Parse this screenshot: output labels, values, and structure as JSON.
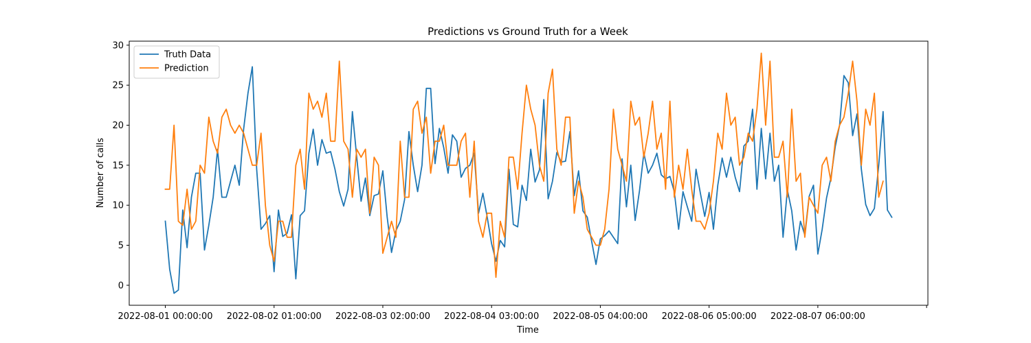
{
  "chart_data": {
    "type": "line",
    "title": "Predictions vs Ground Truth for a Week",
    "xlabel": "Time",
    "ylabel": "Number of calls",
    "x_start": "2022-08-01 00:00:00",
    "x_step_hours": 1,
    "x_tick_labels": [
      "2022-08-01 00:00:00",
      "2022-08-02 01:00:00",
      "2022-08-03 02:00:00",
      "2022-08-04 03:00:00",
      "2022-08-05 04:00:00",
      "2022-08-06 05:00:00",
      "2022-08-07 06:00:00",
      ""
    ],
    "x_tick_hours": [
      0,
      25,
      50,
      75,
      100,
      125,
      150,
      175
    ],
    "xlim_hours": [
      -8.3,
      175.3
    ],
    "yticks": [
      0,
      5,
      10,
      15,
      20,
      25,
      30
    ],
    "ylim": [
      -2.5,
      30.5
    ],
    "grid": false,
    "legend_position": "upper-left",
    "series": [
      {
        "name": "Truth Data",
        "color": "#1f77b4",
        "values": [
          8,
          2,
          -1,
          -0.6,
          9.4,
          4.7,
          11,
          14,
          14,
          4.4,
          7.5,
          11,
          17,
          11,
          11,
          13,
          15,
          12.5,
          19.5,
          24,
          27.3,
          14.5,
          7,
          7.7,
          8.7,
          1.7,
          9.4,
          6.1,
          6.5,
          8.8,
          0.8,
          8.7,
          9.3,
          16.5,
          19.5,
          15,
          18.2,
          16.5,
          16.7,
          14.5,
          11.7,
          9.9,
          12,
          21.7,
          16,
          10.5,
          13.4,
          8.7,
          11.2,
          11.4,
          14.3,
          8.5,
          4.1,
          6.8,
          8,
          10.7,
          19.2,
          15,
          11.7,
          15,
          24.6,
          24.6,
          15.2,
          19.6,
          17.2,
          14,
          18.8,
          18,
          13.5,
          14.6,
          15,
          16.5,
          9,
          11.5,
          8.5,
          5.2,
          3,
          5.6,
          4.8,
          14.5,
          7.6,
          7.3,
          12.5,
          10.6,
          17,
          12.9,
          14.4,
          23.2,
          10.8,
          13,
          16.6,
          15.4,
          15.5,
          19.2,
          11.2,
          14.3,
          9.3,
          8.5,
          5.5,
          2.6,
          5.8,
          6.2,
          6.8,
          6,
          5.2,
          15.8,
          9.8,
          15,
          8.1,
          11.8,
          16.5,
          14,
          15,
          16.5,
          13.8,
          13.3,
          13.6,
          11.7,
          7,
          11.7,
          9.8,
          8,
          14.5,
          11.5,
          8.6,
          11.6,
          7,
          12.5,
          15.9,
          13.5,
          16,
          13.5,
          11.7,
          17.4,
          18,
          22,
          12,
          19.6,
          13.3,
          19,
          13,
          15,
          6,
          11.9,
          9.3,
          4.4,
          8,
          6.3,
          11.1,
          12.5,
          3.9,
          7,
          10.9,
          13.4,
          17.3,
          20,
          26.2,
          25.3,
          18.7,
          21.4,
          14.5,
          10.1,
          8.7,
          9.6,
          15,
          21.7,
          9.4,
          8.5
        ]
      },
      {
        "name": "Prediction",
        "color": "#ff7f0e",
        "values": [
          12,
          12,
          20,
          8,
          7.5,
          12,
          7,
          8,
          15,
          14,
          21,
          18,
          16.5,
          21,
          22,
          20,
          19,
          20,
          19,
          17,
          15,
          15,
          19,
          10,
          5,
          3,
          8,
          8,
          6,
          6,
          15,
          17,
          12,
          24,
          22,
          23,
          21,
          24,
          18,
          18,
          28,
          18,
          17,
          11,
          17,
          16,
          17,
          9,
          16,
          15,
          4,
          6,
          8,
          6,
          18,
          11,
          11,
          22,
          23,
          19,
          21,
          14,
          18,
          18,
          20,
          15,
          15,
          15,
          18,
          19,
          11,
          18,
          8,
          6,
          9,
          9,
          1,
          8,
          6,
          16,
          16,
          12,
          19,
          25,
          22,
          20,
          15,
          13,
          24,
          27,
          17,
          15,
          21,
          21,
          9,
          13,
          11,
          7,
          6,
          5,
          5,
          7,
          12,
          22,
          17,
          15,
          13,
          23,
          20,
          21,
          16,
          19,
          23,
          17,
          19,
          12,
          23,
          11,
          15,
          12,
          17,
          12,
          8,
          8,
          7,
          9,
          13,
          19,
          17,
          24,
          20,
          21,
          15,
          16,
          19,
          18,
          22,
          29,
          20,
          28,
          16,
          16,
          18,
          11,
          22,
          13,
          14,
          6,
          11,
          10,
          9,
          15,
          16,
          13,
          18,
          20,
          21,
          24,
          28,
          23,
          15,
          22,
          20,
          24,
          11,
          13
        ]
      }
    ]
  }
}
